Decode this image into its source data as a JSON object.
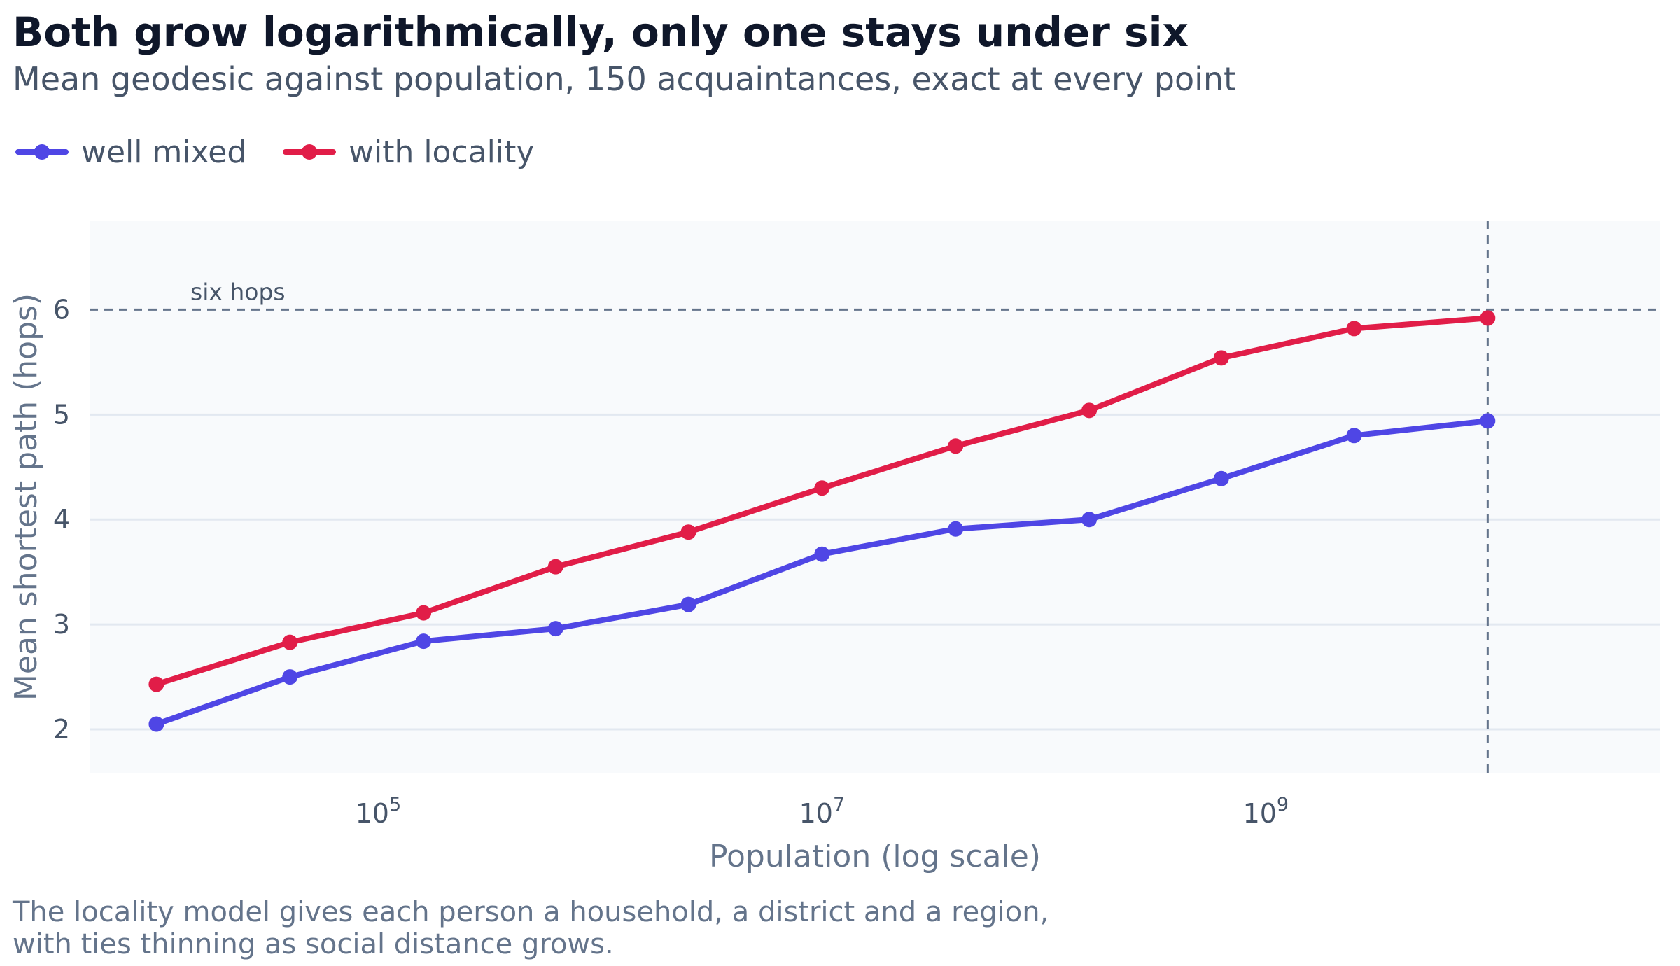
{
  "title": "Both grow logarithmically, only one stays under six",
  "subtitle": "Mean geodesic against population, 150 acquaintances, exact at every point",
  "caption": [
    "The locality model gives each person a household, a district and a region,",
    "with ties thinning as social distance grows."
  ],
  "chart_data": {
    "type": "line",
    "xlabel": "Population (log scale)",
    "ylabel": "Mean shortest path (hops)",
    "xscale": "log",
    "xlim": [
      5000,
      60000000000
    ],
    "ylim": [
      1.58,
      6.85
    ],
    "x_ticks": [
      {
        "value": 100000,
        "base": "10",
        "exp": "5"
      },
      {
        "value": 10000000,
        "base": "10",
        "exp": "7"
      },
      {
        "value": 1000000000,
        "base": "10",
        "exp": "9"
      }
    ],
    "y_ticks": [
      2,
      3,
      4,
      5,
      6
    ],
    "grid": "horizontal",
    "legend_position": "top-left",
    "x": [
      10000,
      40000,
      160000,
      630000,
      2500000,
      10000000,
      40000000,
      160000000,
      630000000,
      2500000000,
      10000000000
    ],
    "series": [
      {
        "name": "well mixed",
        "color": "#4f46e5",
        "values": [
          2.05,
          2.5,
          2.84,
          2.96,
          3.19,
          3.67,
          3.91,
          4.0,
          4.39,
          4.8,
          4.94
        ]
      },
      {
        "name": "with locality",
        "color": "#e11d48",
        "values": [
          2.43,
          2.83,
          3.11,
          3.55,
          3.88,
          4.3,
          4.7,
          5.04,
          5.54,
          5.82,
          5.92
        ]
      }
    ],
    "reference_lines": [
      {
        "axis": "y",
        "value": 6,
        "label": "six hops",
        "style": "dashed",
        "color": "#64748b"
      },
      {
        "axis": "x",
        "value": 10000000000,
        "style": "dashed",
        "color": "#64748b"
      }
    ]
  }
}
